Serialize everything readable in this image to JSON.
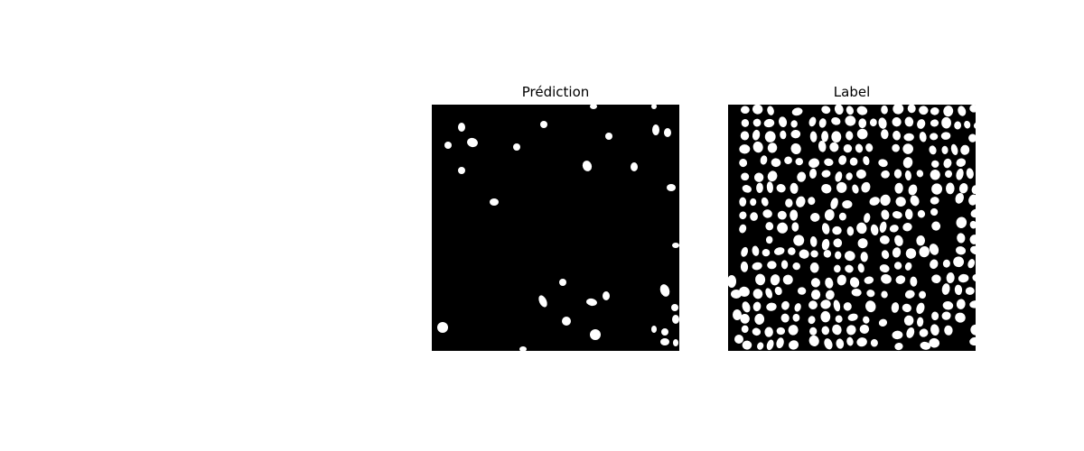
{
  "panels": [
    {
      "title": "Prédiction",
      "image": "binary segmentation mask, sparse white blobs on black"
    },
    {
      "title": "Label",
      "image": "binary segmentation mask, dense vertical columns of white blobs on black"
    }
  ]
}
